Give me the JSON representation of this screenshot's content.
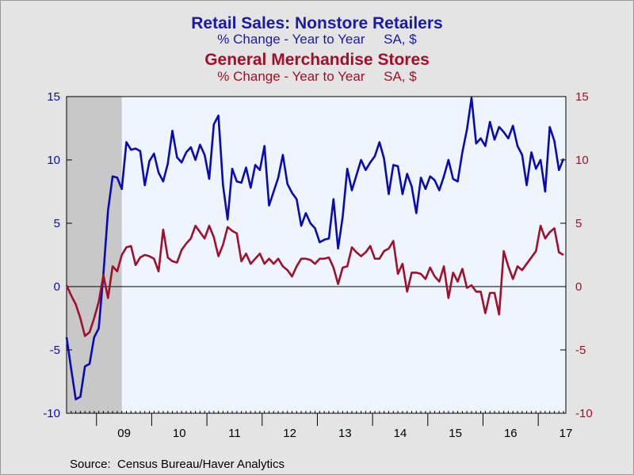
{
  "titles": {
    "series1_title": "Retail Sales: Nonstore Retailers",
    "series1_subtitle": "% Change - Year to Year     SA, $",
    "series2_title": "General Merchandise Stores",
    "series2_subtitle": "% Change - Year to Year     SA, $"
  },
  "source": "Source:  Census Bureau/Haver Analytics",
  "colors": {
    "series1": "#0a0ab4",
    "series2": "#a0102a",
    "plot_bg": "#eef5ff",
    "recession": "#c8c8c8"
  },
  "chart_data": {
    "type": "line",
    "x_start": "2008-06",
    "x_frequency": "monthly",
    "ylim": [
      -10,
      15
    ],
    "y_ticks": [
      -10,
      -5,
      0,
      5,
      10,
      15
    ],
    "y_axes": "both",
    "grid": false,
    "zero_line": true,
    "x_tick_labels": [
      "09",
      "10",
      "11",
      "12",
      "13",
      "14",
      "15",
      "16",
      "17"
    ],
    "x_tick_years": [
      2009,
      2010,
      2011,
      2012,
      2013,
      2014,
      2015,
      2016,
      2017
    ],
    "recession": {
      "start": "2008-06",
      "end": "2009-06"
    },
    "series": [
      {
        "name": "Retail Sales: Nonstore Retailers",
        "color": "#0a0ab4",
        "values": [
          -4,
          -6.5,
          -8.9,
          -8.7,
          -6.3,
          -6.1,
          -4,
          -3.3,
          1,
          6,
          8.7,
          8.6,
          7.7,
          11.4,
          10.8,
          10.9,
          10.7,
          8,
          9.9,
          10.5,
          9,
          8.3,
          9.7,
          12.3,
          10.2,
          9.8,
          10.6,
          11,
          10,
          11.2,
          10.4,
          8.5,
          12.8,
          13.5,
          8,
          5.3,
          9.3,
          8.3,
          8.2,
          9.4,
          7.8,
          9.6,
          9.2,
          11.1,
          6.4,
          7.5,
          8.6,
          10.4,
          8.1,
          7.4,
          6.9,
          4.8,
          5.8,
          5,
          4.6,
          3.5,
          3.7,
          3.8,
          6.9,
          3,
          5.5,
          9.3,
          7.6,
          8.8,
          10,
          9.2,
          9.8,
          10.3,
          11.4,
          10.1,
          7.3,
          9.6,
          9.5,
          7.3,
          8.9,
          7.9,
          5.8,
          8.6,
          7.7,
          8.7,
          8.4,
          7.6,
          8.7,
          10,
          8.5,
          8.3,
          10.6,
          12.4,
          14.9,
          11.3,
          11.7,
          11.1,
          13,
          11.6,
          12.6,
          12.2,
          11.7,
          12.7,
          11.1,
          10.4,
          8,
          10.6,
          9.3,
          10,
          7.5,
          12.6,
          11.5,
          9.2,
          10.1
        ]
      },
      {
        "name": "General Merchandise Stores",
        "color": "#a0102a",
        "values": [
          0.1,
          -0.7,
          -1.4,
          -2.5,
          -3.9,
          -3.6,
          -2.5,
          -1.2,
          0.9,
          -0.9,
          1.6,
          1.2,
          2.5,
          3.1,
          3.2,
          1.7,
          2.3,
          2.5,
          2.4,
          2.2,
          1.2,
          4.5,
          2.3,
          2,
          1.9,
          2.9,
          3.4,
          3.8,
          4.8,
          4.3,
          3.8,
          4.8,
          3.9,
          2.4,
          3.3,
          4.7,
          4.4,
          4.2,
          2,
          2.6,
          1.8,
          2.2,
          2.6,
          1.8,
          2.2,
          1.8,
          2.2,
          1.6,
          1.3,
          0.8,
          1.6,
          2.2,
          2.2,
          2.1,
          1.8,
          2.2,
          2.2,
          2.3,
          1.5,
          0.2,
          1.5,
          1.6,
          3.1,
          2.7,
          2.4,
          2.7,
          3.2,
          2.2,
          2.2,
          2.8,
          3,
          3.6,
          1,
          1.8,
          -0.4,
          1.1,
          1.1,
          1,
          0.6,
          1.5,
          0.8,
          0.4,
          1.6,
          -0.9,
          1.1,
          0.4,
          1.4,
          -0.1,
          0.1,
          -0.4,
          -0.4,
          -2.1,
          -0.5,
          -0.5,
          -2.2,
          2.8,
          1.6,
          0.6,
          1.6,
          1.3,
          1.8,
          2.3,
          2.8,
          4.8,
          3.8,
          4.3,
          4.6,
          2.7,
          2.5
        ]
      }
    ]
  }
}
